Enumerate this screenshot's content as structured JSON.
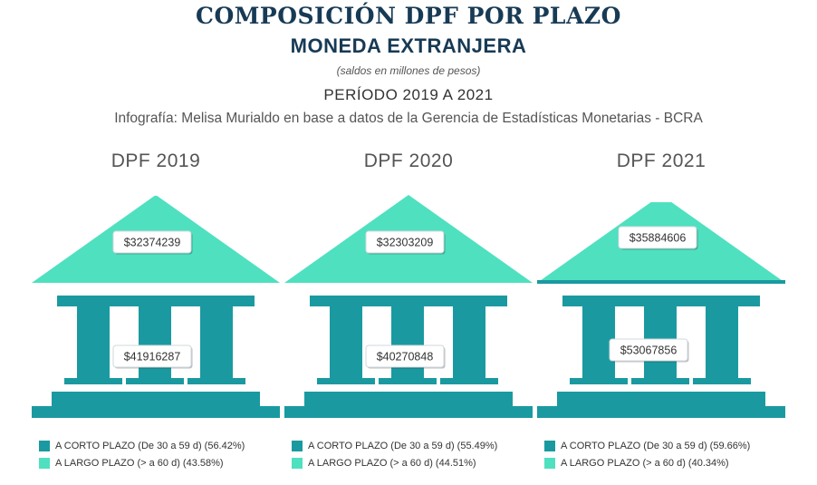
{
  "title": "COMPOSICIÓN DPF POR PLAZO",
  "subtitle": "MONEDA EXTRANJERA",
  "note": "(saldos en millones de pesos)",
  "period": "PERÍODO 2019 A 2021",
  "credit": "Infografía: Melisa Murialdo en base a datos de la Gerencia de Estadísticas Monetarias - BCRA",
  "colors": {
    "corto": "#1a9aa0",
    "largo": "#4fe0bf",
    "title": "#173a55"
  },
  "chart_data": [
    {
      "type": "bar",
      "title": "DPF 2019",
      "categories": [
        "A CORTO PLAZO (De 30 a 59 d)",
        "A LARGO PLAZO (> a 60 d)"
      ],
      "values": [
        41916287,
        32374239
      ],
      "value_labels": {
        "corto": "$41916287",
        "largo": "$32374239"
      },
      "legend": [
        {
          "label": "A CORTO PLAZO (De 30 a 59 d) (56.42%)",
          "percent": 56.42,
          "color": "corto"
        },
        {
          "label": "A LARGO PLAZO (> a 60 d) (43.58%)",
          "percent": 43.58,
          "color": "largo"
        }
      ]
    },
    {
      "type": "bar",
      "title": "DPF 2020",
      "categories": [
        "A CORTO PLAZO (De 30 a 59 d)",
        "A LARGO PLAZO (> a 60 d)"
      ],
      "values": [
        40270848,
        32303209
      ],
      "value_labels": {
        "corto": "$40270848",
        "largo": "$32303209"
      },
      "legend": [
        {
          "label": "A CORTO PLAZO (De 30 a 59 d) (55.49%)",
          "percent": 55.49,
          "color": "corto"
        },
        {
          "label": "A LARGO PLAZO (> a 60 d) (44.51%)",
          "percent": 44.51,
          "color": "largo"
        }
      ]
    },
    {
      "type": "bar",
      "title": "DPF 2021",
      "categories": [
        "A CORTO PLAZO (De 30 a 59 d)",
        "A LARGO PLAZO (> a 60 d)"
      ],
      "values": [
        53067856,
        35884606
      ],
      "value_labels": {
        "corto": "$53067856",
        "largo": "$35884606"
      },
      "legend": [
        {
          "label": "A CORTO PLAZO (De 30 a 59 d) (59.66%)",
          "percent": 59.66,
          "color": "corto"
        },
        {
          "label": "A LARGO PLAZO (> a 60 d) (40.34%)",
          "percent": 40.34,
          "color": "largo"
        }
      ]
    }
  ]
}
